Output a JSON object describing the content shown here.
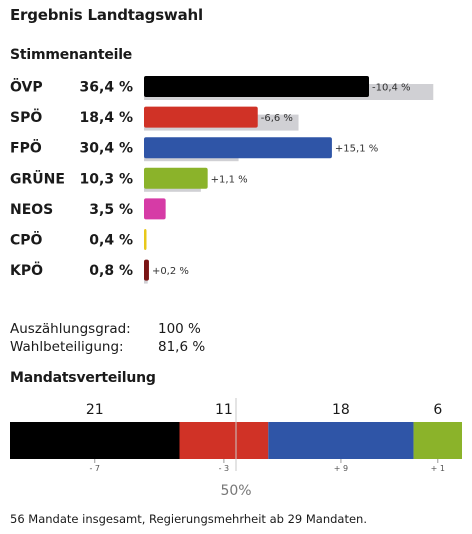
{
  "title": "Ergebnis Landtagswahl",
  "votes_heading": "Stimmenanteile",
  "mandates_heading": "Mandatsverteilung",
  "info": {
    "count_label": "Auszählungsgrad:",
    "count_value": "100 %",
    "turnout_label": "Wahlbeteiligung:",
    "turnout_value": "81,6 %"
  },
  "majority_label": "50%",
  "footer": "56 Mandate insgesamt, Regierungsmehrheit ab 29 Mandaten.",
  "colors": {
    "ÖVP": "#000000",
    "SPÖ": "#d03226",
    "FPÖ": "#2f55a7",
    "GRÜNE": "#8bb32a",
    "NEOS": "#d63ba6",
    "CPÖ": "#e8c81a",
    "KPÖ": "#7a1414",
    "previous": "#d0d0d4"
  },
  "chart_data": [
    {
      "type": "bar",
      "title": "Stimmenanteile",
      "categories": [
        "ÖVP",
        "SPÖ",
        "FPÖ",
        "GRÜNE",
        "NEOS",
        "CPÖ",
        "KPÖ"
      ],
      "value_labels": [
        "36,4 %",
        "18,4 %",
        "30,4 %",
        "10,3 %",
        "3,5 %",
        "0,4 %",
        "0,8 %"
      ],
      "series": [
        {
          "name": "",
          "values": [
            36.4,
            18.4,
            30.4,
            10.3,
            3.5,
            0.4,
            0.8
          ]
        },
        {
          "name": "",
          "values": [
            46.8,
            25.0,
            15.3,
            9.2,
            null,
            null,
            0.6
          ]
        }
      ],
      "change_labels": [
        "-10,4 %",
        "-6,6 %",
        "+15,1 %",
        "+1,1 %",
        "",
        "",
        "+0,2 %"
      ],
      "xlim": [
        0,
        50
      ]
    },
    {
      "type": "bar",
      "title": "Mandatsverteilung",
      "stacked": true,
      "categories": [
        "ÖVP",
        "SPÖ",
        "FPÖ",
        "GRÜNE"
      ],
      "values": [
        21,
        11,
        18,
        6
      ],
      "change_labels": [
        "- 7",
        "- 3",
        "+ 9",
        "+ 1"
      ],
      "total": 56
    }
  ]
}
